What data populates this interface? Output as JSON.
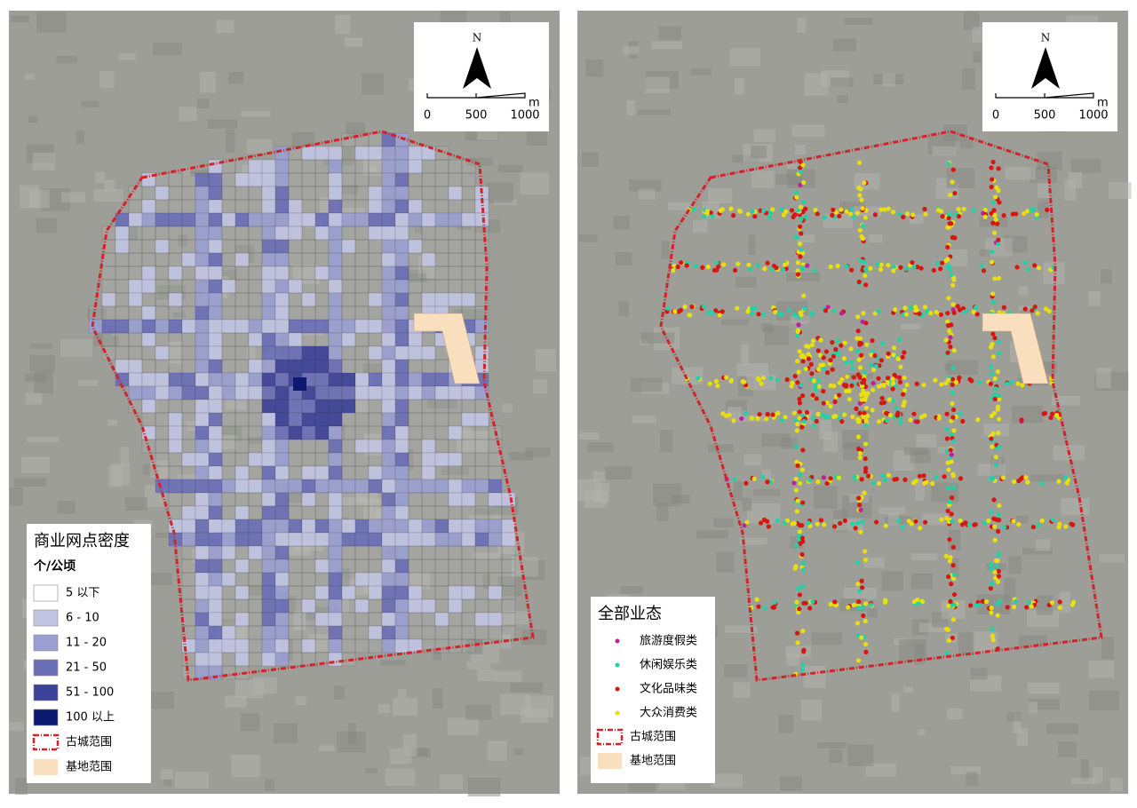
{
  "left_map": {
    "north": "N",
    "scale": {
      "ticks": [
        0,
        500,
        1000
      ],
      "unit": "m"
    },
    "legend": {
      "title": "商业网点密度",
      "unit": "个/公顷",
      "items": [
        {
          "label": "5 以下",
          "color": "#ffffff"
        },
        {
          "label": "6 - 10",
          "color": "#c3c5e4"
        },
        {
          "label": "11 - 20",
          "color": "#9b9ed0"
        },
        {
          "label": "21 - 50",
          "color": "#6a6eb7"
        },
        {
          "label": "51 - 100",
          "color": "#3b4098"
        },
        {
          "label": "100 以上",
          "color": "#0c1970"
        }
      ],
      "boundary": {
        "label": "古城范围",
        "color": "#d2232a"
      },
      "site": {
        "label": "基地范围",
        "color": "#f9dfbe"
      }
    }
  },
  "right_map": {
    "north": "N",
    "scale": {
      "ticks": [
        0,
        500,
        1000
      ],
      "unit": "m"
    },
    "legend": {
      "title": "全部业态",
      "items": [
        {
          "label": "旅游度假类",
          "color": "#c0219a"
        },
        {
          "label": "休闲娱乐类",
          "color": "#25d0a6"
        },
        {
          "label": "文化品味类",
          "color": "#d8150f"
        },
        {
          "label": "大众消费类",
          "color": "#e8e00c"
        }
      ],
      "boundary": {
        "label": "古城范围",
        "color": "#d2232a"
      },
      "site": {
        "label": "基地范围",
        "color": "#f9dfbe"
      }
    }
  }
}
